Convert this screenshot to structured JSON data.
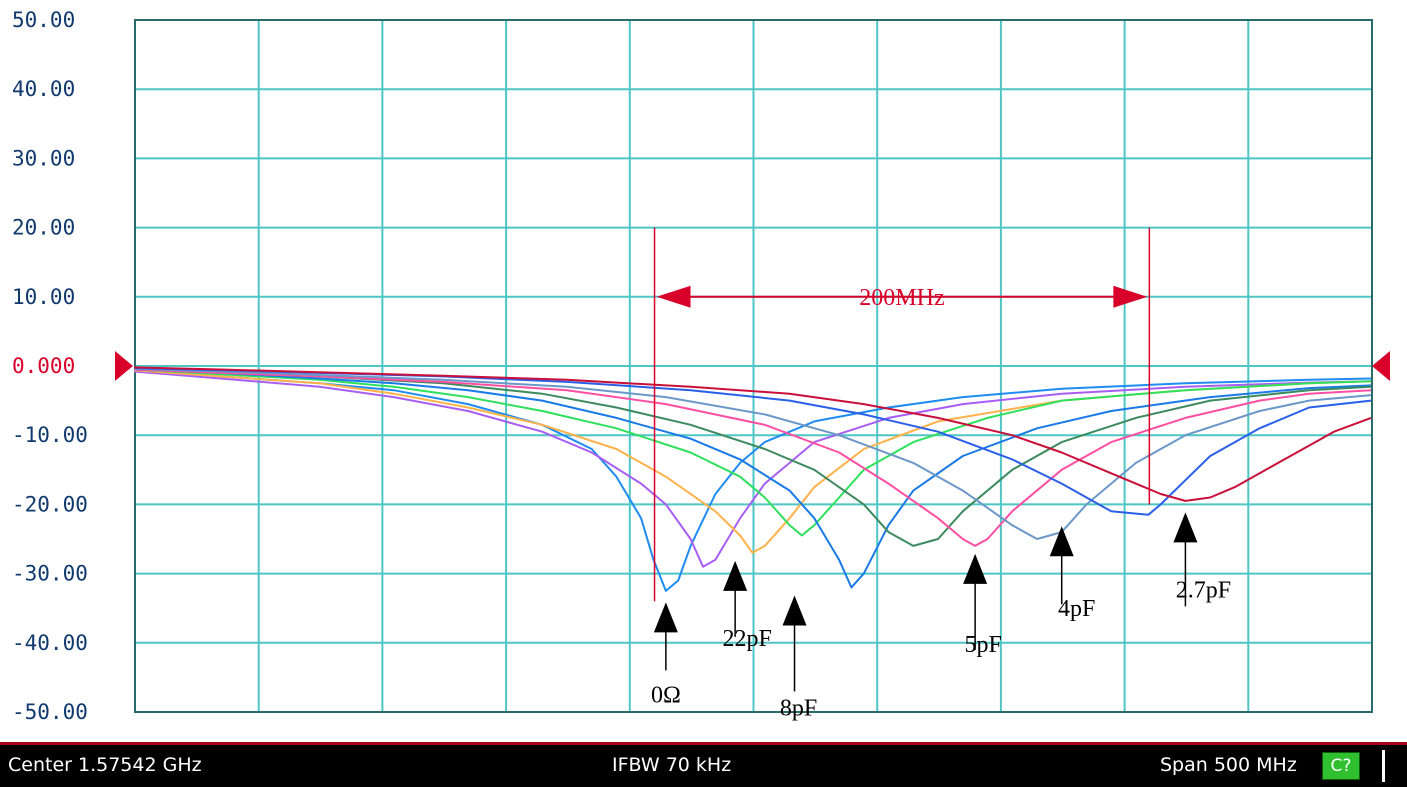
{
  "chart_data": {
    "type": "line",
    "title": "",
    "xlabel": "",
    "ylabel": "",
    "xlim": [
      1.32542,
      1.82542
    ],
    "ylim": [
      -50,
      50
    ],
    "yticks": [
      "50.00",
      "40.00",
      "30.00",
      "20.00",
      "10.00",
      "0.000",
      "-10.00",
      "-20.00",
      "-30.00",
      "-40.00",
      "-50.00"
    ],
    "reference_level": 0,
    "grid": true,
    "x_divisions": 10,
    "series": [
      {
        "color": "#1e8cf0",
        "x": [
          1.325,
          1.36,
          1.4,
          1.43,
          1.46,
          1.49,
          1.51,
          1.52,
          1.53,
          1.535,
          1.54,
          1.545,
          1.55,
          1.56,
          1.57,
          1.58,
          1.6,
          1.63,
          1.66,
          1.7,
          1.75,
          1.8,
          1.825
        ],
        "y": [
          -0.5,
          -1.5,
          -2.5,
          -3.5,
          -5.5,
          -8.5,
          -12,
          -16,
          -22,
          -28,
          -32.5,
          -31,
          -26,
          -18.5,
          -14,
          -11,
          -8,
          -6,
          -4.5,
          -3.3,
          -2.5,
          -2,
          -1.8
        ]
      },
      {
        "color": "#a85ef2",
        "x": [
          1.325,
          1.36,
          1.4,
          1.43,
          1.46,
          1.49,
          1.51,
          1.53,
          1.54,
          1.55,
          1.555,
          1.56,
          1.57,
          1.58,
          1.6,
          1.63,
          1.66,
          1.7,
          1.75,
          1.8,
          1.825
        ],
        "y": [
          -0.8,
          -1.8,
          -3,
          -4.5,
          -6.5,
          -9.5,
          -12.5,
          -17,
          -20,
          -25,
          -29,
          -28,
          -22,
          -17,
          -11,
          -7.5,
          -5.5,
          -4,
          -3,
          -2.4,
          -2.2
        ]
      },
      {
        "color": "#ffb24a",
        "x": [
          1.325,
          1.36,
          1.4,
          1.43,
          1.46,
          1.49,
          1.52,
          1.54,
          1.56,
          1.57,
          1.575,
          1.58,
          1.59,
          1.6,
          1.62,
          1.65,
          1.7,
          1.75,
          1.8,
          1.825
        ],
        "y": [
          -0.6,
          -1.5,
          -2.5,
          -4,
          -6,
          -8.5,
          -12,
          -16,
          -21,
          -24.5,
          -27,
          -26,
          -22,
          -17.5,
          -12,
          -8,
          -5,
          -3.5,
          -2.5,
          -2.2
        ]
      },
      {
        "color": "#2fe05c",
        "x": [
          1.325,
          1.36,
          1.4,
          1.43,
          1.46,
          1.49,
          1.52,
          1.55,
          1.57,
          1.58,
          1.59,
          1.595,
          1.6,
          1.61,
          1.62,
          1.64,
          1.67,
          1.7,
          1.75,
          1.8,
          1.825
        ],
        "y": [
          -0.5,
          -1.2,
          -2,
          -3,
          -4.5,
          -6.5,
          -9,
          -12.5,
          -16,
          -19,
          -23,
          -24.5,
          -23,
          -19,
          -15,
          -11,
          -7.5,
          -5,
          -3.5,
          -2.5,
          -2.2
        ]
      },
      {
        "color": "#1a7ae8",
        "x": [
          1.325,
          1.36,
          1.4,
          1.43,
          1.46,
          1.49,
          1.52,
          1.55,
          1.57,
          1.59,
          1.6,
          1.61,
          1.615,
          1.62,
          1.63,
          1.64,
          1.66,
          1.69,
          1.72,
          1.76,
          1.8,
          1.825
        ],
        "y": [
          -0.5,
          -1,
          -1.8,
          -2.5,
          -3.5,
          -5,
          -7.5,
          -10.5,
          -13.5,
          -18,
          -22,
          -28,
          -32,
          -30,
          -23,
          -18,
          -13,
          -9,
          -6.5,
          -4.5,
          -3.2,
          -2.8
        ]
      },
      {
        "color": "#3c8a5e",
        "x": [
          1.325,
          1.36,
          1.4,
          1.45,
          1.49,
          1.52,
          1.55,
          1.58,
          1.6,
          1.62,
          1.63,
          1.64,
          1.65,
          1.66,
          1.68,
          1.7,
          1.73,
          1.76,
          1.8,
          1.825
        ],
        "y": [
          -0.4,
          -0.9,
          -1.5,
          -2.5,
          -4,
          -6,
          -8.5,
          -12,
          -15,
          -20,
          -24,
          -26,
          -25,
          -21,
          -15,
          -11,
          -7.5,
          -5,
          -3.5,
          -3
        ]
      },
      {
        "color": "#ff4fa2",
        "x": [
          1.325,
          1.36,
          1.4,
          1.45,
          1.5,
          1.54,
          1.58,
          1.61,
          1.63,
          1.65,
          1.66,
          1.665,
          1.67,
          1.68,
          1.7,
          1.72,
          1.75,
          1.78,
          1.8,
          1.825
        ],
        "y": [
          -0.5,
          -1,
          -1.5,
          -2.3,
          -3.5,
          -5.5,
          -8.5,
          -12.5,
          -17,
          -22,
          -25,
          -26,
          -25,
          -21,
          -15,
          -11,
          -7.5,
          -5,
          -4,
          -3.5
        ]
      },
      {
        "color": "#6b98c8",
        "x": [
          1.325,
          1.36,
          1.4,
          1.45,
          1.5,
          1.54,
          1.58,
          1.61,
          1.64,
          1.66,
          1.68,
          1.69,
          1.7,
          1.71,
          1.73,
          1.75,
          1.78,
          1.8,
          1.825
        ],
        "y": [
          -0.4,
          -0.8,
          -1.3,
          -2,
          -3,
          -4.5,
          -7,
          -10,
          -14,
          -18,
          -23,
          -25,
          -24,
          -20,
          -14,
          -10,
          -6.5,
          -5,
          -4.2
        ]
      },
      {
        "color": "#2a5fe8",
        "x": [
          1.325,
          1.36,
          1.4,
          1.45,
          1.5,
          1.55,
          1.59,
          1.62,
          1.65,
          1.68,
          1.7,
          1.72,
          1.735,
          1.74,
          1.75,
          1.76,
          1.78,
          1.8,
          1.825
        ],
        "y": [
          -0.3,
          -0.6,
          -1,
          -1.5,
          -2.3,
          -3.5,
          -5,
          -7,
          -9.5,
          -13.5,
          -17,
          -21,
          -21.5,
          -20,
          -16.5,
          -13,
          -9,
          -6,
          -5
        ]
      },
      {
        "color": "#c8103a",
        "x": [
          1.325,
          1.36,
          1.4,
          1.45,
          1.5,
          1.55,
          1.59,
          1.62,
          1.65,
          1.68,
          1.7,
          1.72,
          1.74,
          1.75,
          1.76,
          1.77,
          1.79,
          1.8,
          1.81,
          1.825
        ],
        "y": [
          -0.2,
          -0.5,
          -0.9,
          -1.4,
          -2,
          -3,
          -4,
          -5.5,
          -7.5,
          -10,
          -12.5,
          -15.5,
          -18.5,
          -19.5,
          -19,
          -17.5,
          -13.5,
          -11.5,
          -9.5,
          -7.5
        ]
      }
    ],
    "annotations": [
      {
        "text": "0Ω",
        "x": 1.54,
        "y": -33
      },
      {
        "text": "22pF",
        "x": 1.568,
        "y": -27
      },
      {
        "text": "8pF",
        "x": 1.592,
        "y": -32
      },
      {
        "text": "5pF",
        "x": 1.665,
        "y": -26
      },
      {
        "text": "4pF",
        "x": 1.7,
        "y": -22
      },
      {
        "text": "2.7pF",
        "x": 1.75,
        "y": -20
      }
    ],
    "bandwidth_marker": {
      "label": "200MHz",
      "x_start": 1.53542,
      "x_end": 1.73542,
      "y": 10
    }
  },
  "statusbar": {
    "center": "Center 1.57542 GHz",
    "ifbw": "IFBW 70 kHz",
    "span": "Span 500 MHz",
    "channel": "C?"
  },
  "colors": {
    "grid": "#4ec6c6",
    "reference": "#d8002a",
    "tick_text": "#103a6e",
    "marker": "#d8002a"
  }
}
